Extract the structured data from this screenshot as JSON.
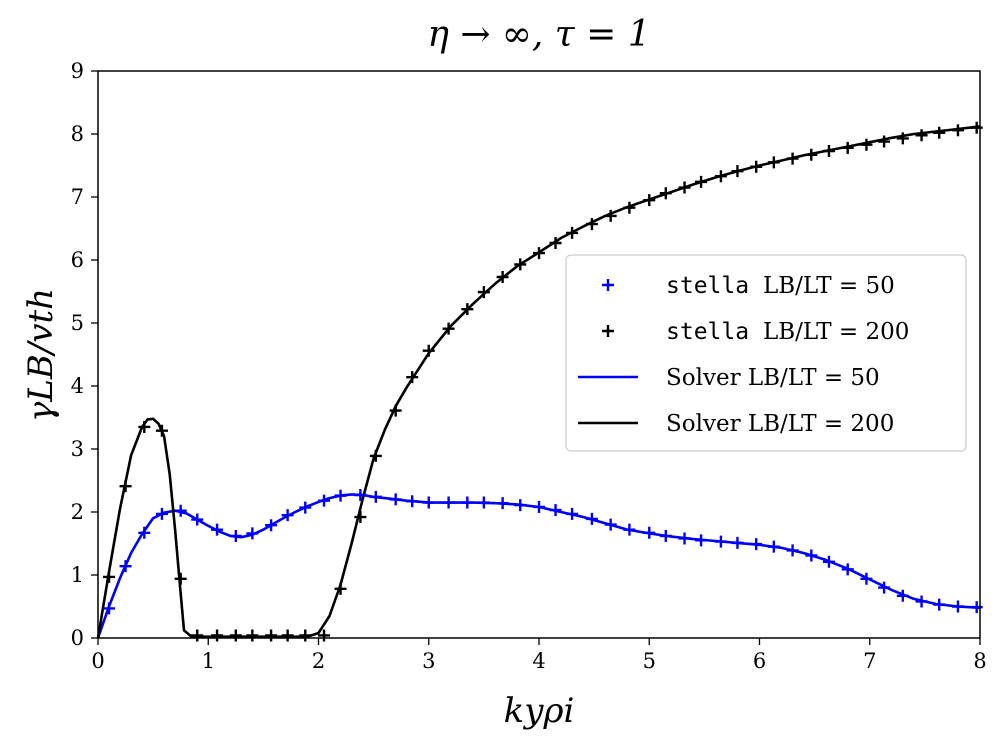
{
  "chart_data": {
    "type": "line",
    "title": "η → ∞, τ = 1",
    "xlabel": "kyρi",
    "ylabel": "γLB/vth",
    "xlim": [
      0,
      8
    ],
    "ylim": [
      0,
      9
    ],
    "xticks": [
      "0",
      "1",
      "2",
      "3",
      "4",
      "5",
      "6",
      "7",
      "8"
    ],
    "yticks": [
      "0",
      "1",
      "2",
      "3",
      "4",
      "5",
      "6",
      "7",
      "8",
      "9"
    ],
    "grid": false,
    "legend_position": "center-right",
    "legend": [
      {
        "prefix": "stella",
        "text": "LB/LT = 50",
        "marker": "+",
        "color": "#0000ff"
      },
      {
        "prefix": "stella",
        "text": "LB/LT = 200",
        "marker": "+",
        "color": "#000000"
      },
      {
        "prefix": "",
        "text": "Solver LB/LT = 50",
        "marker": "line",
        "color": "#0000ff"
      },
      {
        "prefix": "",
        "text": "Solver LB/LT = 200",
        "marker": "line",
        "color": "#000000"
      }
    ],
    "series": [
      {
        "name": "stella LB/LT = 50",
        "kind": "markers",
        "color": "#0000ff",
        "x": [
          0.1,
          0.25,
          0.42,
          0.58,
          0.75,
          0.9,
          1.08,
          1.25,
          1.4,
          1.57,
          1.72,
          1.88,
          2.05,
          2.2,
          2.38,
          2.52,
          2.7,
          2.85,
          3.0,
          3.18,
          3.35,
          3.5,
          3.67,
          3.83,
          4.0,
          4.15,
          4.3,
          4.48,
          4.65,
          4.82,
          5.0,
          5.15,
          5.32,
          5.47,
          5.65,
          5.8,
          5.97,
          6.13,
          6.3,
          6.47,
          6.63,
          6.8,
          6.97,
          7.13,
          7.3,
          7.47,
          7.63,
          7.8,
          7.97
        ],
        "y": [
          0.47,
          1.14,
          1.67,
          1.97,
          2.02,
          1.88,
          1.72,
          1.62,
          1.66,
          1.79,
          1.95,
          2.07,
          2.18,
          2.26,
          2.27,
          2.24,
          2.2,
          2.17,
          2.15,
          2.15,
          2.15,
          2.15,
          2.14,
          2.11,
          2.08,
          2.03,
          1.97,
          1.89,
          1.8,
          1.72,
          1.67,
          1.62,
          1.58,
          1.55,
          1.53,
          1.51,
          1.49,
          1.45,
          1.39,
          1.31,
          1.21,
          1.09,
          0.94,
          0.8,
          0.67,
          0.58,
          0.53,
          0.5,
          0.49
        ]
      },
      {
        "name": "stella LB/LT = 200",
        "kind": "markers",
        "color": "#000000",
        "x": [
          0.1,
          0.25,
          0.42,
          0.58,
          0.75,
          0.9,
          1.08,
          1.25,
          1.4,
          1.57,
          1.72,
          1.88,
          2.05,
          2.2,
          2.38,
          2.52,
          2.7,
          2.85,
          3.0,
          3.18,
          3.35,
          3.5,
          3.67,
          3.83,
          4.0,
          4.15,
          4.3,
          4.48,
          4.65,
          4.82,
          5.0,
          5.15,
          5.32,
          5.47,
          5.65,
          5.8,
          5.97,
          6.13,
          6.3,
          6.47,
          6.63,
          6.8,
          6.97,
          7.13,
          7.3,
          7.47,
          7.63,
          7.8,
          7.97
        ],
        "y": [
          0.97,
          2.41,
          3.35,
          3.29,
          0.94,
          0.04,
          0.04,
          0.04,
          0.04,
          0.04,
          0.04,
          0.04,
          0.04,
          0.78,
          1.92,
          2.89,
          3.61,
          4.14,
          4.56,
          4.91,
          5.22,
          5.49,
          5.73,
          5.93,
          6.11,
          6.27,
          6.43,
          6.57,
          6.7,
          6.83,
          6.95,
          7.06,
          7.15,
          7.24,
          7.33,
          7.41,
          7.48,
          7.55,
          7.61,
          7.67,
          7.73,
          7.78,
          7.83,
          7.88,
          7.93,
          7.98,
          8.02,
          8.06,
          8.1
        ]
      },
      {
        "name": "Solver LB/LT = 50",
        "kind": "line",
        "color": "#0000ff",
        "x": [
          0,
          0.1,
          0.2,
          0.3,
          0.4,
          0.5,
          0.6,
          0.7,
          0.8,
          0.9,
          1.0,
          1.1,
          1.2,
          1.3,
          1.4,
          1.5,
          1.6,
          1.7,
          1.8,
          1.9,
          2.0,
          2.1,
          2.2,
          2.3,
          2.4,
          2.5,
          2.6,
          2.8,
          3.0,
          3.2,
          3.4,
          3.6,
          3.8,
          4.0,
          4.2,
          4.4,
          4.6,
          4.8,
          5.0,
          5.2,
          5.4,
          5.6,
          5.8,
          6.0,
          6.2,
          6.4,
          6.6,
          6.8,
          7.0,
          7.2,
          7.4,
          7.6,
          7.8,
          8.0
        ],
        "y": [
          0,
          0.5,
          0.95,
          1.35,
          1.65,
          1.9,
          1.99,
          2.02,
          1.98,
          1.88,
          1.78,
          1.69,
          1.62,
          1.6,
          1.64,
          1.72,
          1.82,
          1.92,
          2.01,
          2.09,
          2.16,
          2.22,
          2.26,
          2.28,
          2.27,
          2.24,
          2.22,
          2.18,
          2.15,
          2.15,
          2.15,
          2.14,
          2.12,
          2.08,
          2.0,
          1.92,
          1.82,
          1.72,
          1.66,
          1.61,
          1.57,
          1.54,
          1.51,
          1.48,
          1.43,
          1.35,
          1.24,
          1.1,
          0.93,
          0.76,
          0.62,
          0.54,
          0.5,
          0.48
        ]
      },
      {
        "name": "Solver LB/LT = 200",
        "kind": "line",
        "color": "#000000",
        "x": [
          0,
          0.1,
          0.2,
          0.3,
          0.4,
          0.45,
          0.5,
          0.55,
          0.6,
          0.65,
          0.7,
          0.75,
          0.78,
          0.85,
          1.0,
          1.5,
          1.9,
          2.0,
          2.1,
          2.2,
          2.3,
          2.4,
          2.5,
          2.6,
          2.7,
          2.8,
          3.0,
          3.2,
          3.4,
          3.6,
          3.8,
          4.0,
          4.2,
          4.4,
          4.6,
          4.8,
          5.0,
          5.2,
          5.4,
          5.6,
          5.8,
          6.0,
          6.2,
          6.4,
          6.6,
          6.8,
          7.0,
          7.2,
          7.4,
          7.6,
          7.8,
          8.0
        ],
        "y": [
          0,
          1.05,
          2.05,
          2.9,
          3.35,
          3.47,
          3.48,
          3.4,
          3.2,
          2.6,
          1.7,
          0.7,
          0.12,
          0.02,
          0.02,
          0.02,
          0.02,
          0.08,
          0.35,
          0.85,
          1.5,
          2.2,
          2.85,
          3.3,
          3.68,
          3.98,
          4.52,
          4.95,
          5.3,
          5.62,
          5.9,
          6.12,
          6.35,
          6.53,
          6.7,
          6.84,
          6.96,
          7.08,
          7.2,
          7.31,
          7.41,
          7.5,
          7.58,
          7.66,
          7.73,
          7.8,
          7.87,
          7.94,
          8.0,
          8.04,
          8.08,
          8.12
        ]
      }
    ]
  }
}
